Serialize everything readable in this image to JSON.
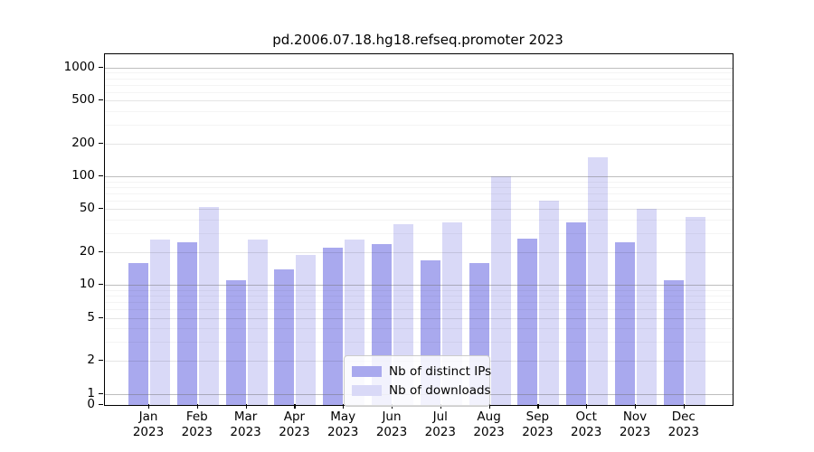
{
  "figure": {
    "title": "pd.2006.07.18.hg18.refseq.promoter 2023"
  },
  "chart_data": {
    "type": "bar",
    "title": "pd.2006.07.18.hg18.refseq.promoter 2023",
    "yscale": "log",
    "ylim": [
      0,
      1300
    ],
    "grid": true,
    "legend_position": "lower center inside plot",
    "categories": [
      "Jan 2023",
      "Feb 2023",
      "Mar 2023",
      "Apr 2023",
      "May 2023",
      "Jun 2023",
      "Jul 2023",
      "Aug 2023",
      "Sep 2023",
      "Oct 2023",
      "Nov 2023",
      "Dec 2023"
    ],
    "x_tick_months": [
      "Jan",
      "Feb",
      "Mar",
      "Apr",
      "May",
      "Jun",
      "Jul",
      "Aug",
      "Sep",
      "Oct",
      "Nov",
      "Dec"
    ],
    "x_tick_year": "2023",
    "y_tick_labels": [
      "1000",
      "500",
      "200",
      "100",
      "50",
      "20",
      "10",
      "5",
      "2",
      "1",
      "0"
    ],
    "series": [
      {
        "name": "Nb of distinct IPs",
        "color": "#a9a9ee",
        "values": [
          16,
          25,
          11,
          14,
          22,
          24,
          17,
          16,
          27,
          38,
          25,
          11
        ]
      },
      {
        "name": "Nb of downloads",
        "color": "#d9d9f7",
        "values": [
          26,
          52,
          26,
          19,
          26,
          36,
          38,
          100,
          60,
          150,
          50,
          42
        ]
      }
    ]
  },
  "colors": {
    "background": "#ffffff",
    "axis": "#000000",
    "major_grid": "#b0b0b0",
    "minor_grid": "#e4e4e4",
    "text": "#000000"
  }
}
